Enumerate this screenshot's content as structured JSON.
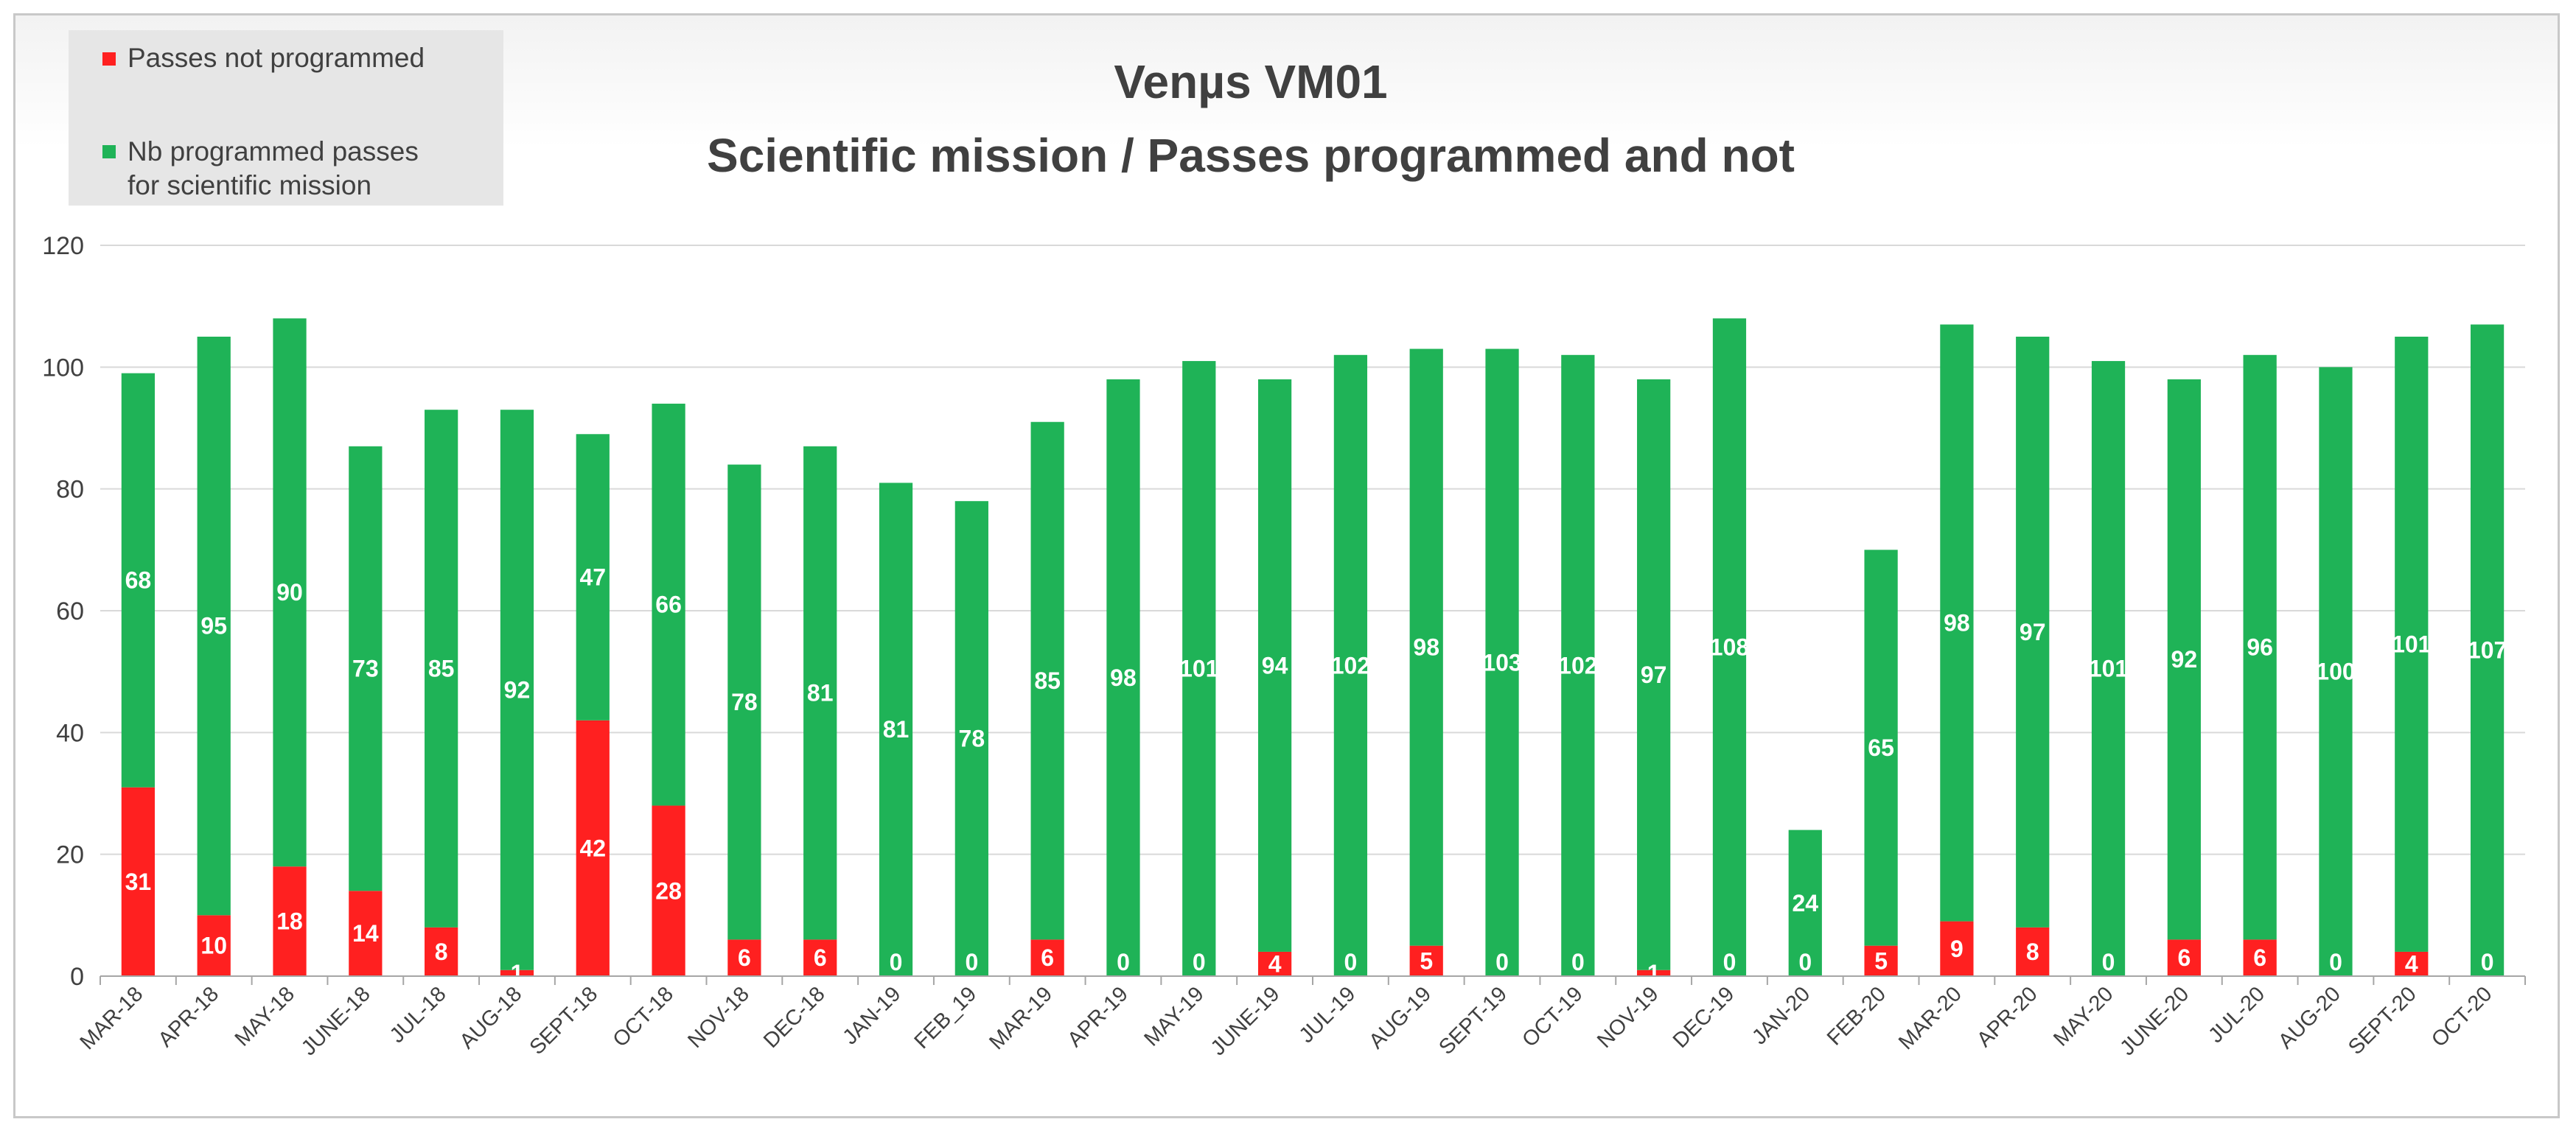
{
  "chart_data": {
    "type": "bar",
    "stacked": true,
    "title": [
      "Venµs VM01",
      "Scientific mission / Passes programmed and not"
    ],
    "xlabel": "",
    "ylabel": "",
    "ylim": [
      0,
      120
    ],
    "yticks": [
      0,
      20,
      40,
      60,
      80,
      100,
      120
    ],
    "grid": true,
    "legend_position": "top-left",
    "categories": [
      "MAR-18",
      "APR-18",
      "MAY-18",
      "JUNE-18",
      "JUL-18",
      "AUG-18",
      "SEPT-18",
      "OCT-18",
      "NOV-18",
      "DEC-18",
      "JAN-19",
      "FEB_19",
      "MAR-19",
      "APR-19",
      "MAY-19",
      "JUNE-19",
      "JUL-19",
      "AUG-19",
      "SEPT-19",
      "OCT-19",
      "NOV-19",
      "DEC-19",
      "JAN-20",
      "FEB-20",
      "MAR-20",
      "APR-20",
      "MAY-20",
      "JUNE-20",
      "JUL-20",
      "AUG-20",
      "SEPT-20",
      "OCT-20"
    ],
    "series": [
      {
        "name": "Passes not programmed",
        "color": "#ff2020",
        "values": [
          31,
          10,
          18,
          14,
          8,
          1,
          42,
          28,
          6,
          6,
          0,
          0,
          6,
          0,
          0,
          4,
          0,
          5,
          0,
          0,
          1,
          0,
          0,
          5,
          9,
          8,
          0,
          6,
          6,
          0,
          4,
          0
        ]
      },
      {
        "name": "Nb programmed passes for scientific mission",
        "legend_lines": [
          "Nb programmed passes",
          "for scientific mission"
        ],
        "color": "#1fb357",
        "values": [
          68,
          95,
          90,
          73,
          85,
          92,
          47,
          66,
          78,
          81,
          81,
          78,
          85,
          98,
          101,
          94,
          102,
          98,
          103,
          102,
          97,
          108,
          24,
          65,
          98,
          97,
          101,
          92,
          96,
          100,
          101,
          107
        ]
      }
    ]
  }
}
